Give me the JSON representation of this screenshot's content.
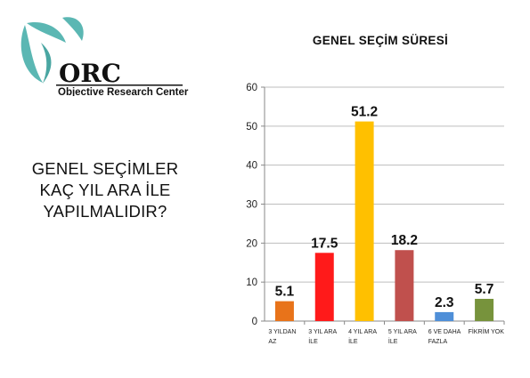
{
  "logo": {
    "mark": "ORC",
    "name": "Objective Research Center"
  },
  "question": {
    "lines": [
      "GENEL SEÇİMLER",
      "KAÇ YIL ARA İLE",
      "YAPILMALIDIR?"
    ]
  },
  "chart_data": {
    "type": "bar",
    "title": "GENEL SEÇİM SÜRESİ",
    "categories": [
      [
        "3 YILDAN",
        "AZ"
      ],
      [
        "3 YIL ARA",
        "İLE"
      ],
      [
        "4 YIL ARA",
        "İLE"
      ],
      [
        "5 YIL ARA",
        "İLE"
      ],
      [
        "6 VE DAHA",
        "FAZLA"
      ],
      [
        "FİKRİM YOK"
      ]
    ],
    "values": [
      5.1,
      17.5,
      51.2,
      18.2,
      2.3,
      5.7
    ],
    "data_labels": [
      "5.1",
      "17.5",
      "51.2",
      "18.2",
      "2.3",
      "5.7"
    ],
    "colors": [
      "#e8731a",
      "#ff1a1a",
      "#ffc000",
      "#c0504d",
      "#4f8fd8",
      "#77933c"
    ],
    "ylim": [
      0,
      60
    ],
    "yticks": [
      0,
      10,
      20,
      30,
      40,
      50,
      60
    ],
    "grid": true,
    "legend": "none"
  }
}
